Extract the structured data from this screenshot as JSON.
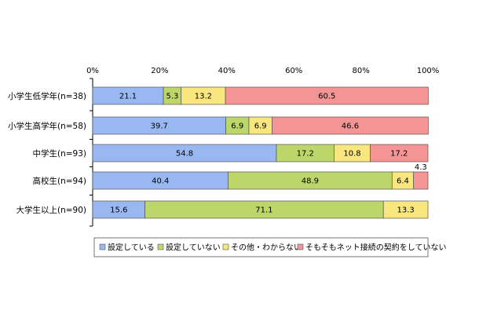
{
  "chart_data": {
    "type": "bar",
    "orientation": "horizontal",
    "stacked": true,
    "xlim": [
      0,
      100
    ],
    "x_ticks": [
      "0%",
      "20%",
      "40%",
      "60%",
      "80%",
      "100%"
    ],
    "categories": [
      "小学生低学年(n=38)",
      "小学生高学年(n=58)",
      "中学生(n=93)",
      "高校生(n=94)",
      "大学生以上(n=90)"
    ],
    "series": [
      {
        "name": "設定している",
        "color": "#99b8f2",
        "values": [
          21.1,
          39.7,
          54.8,
          40.4,
          15.6
        ]
      },
      {
        "name": "設定していない",
        "color": "#bcd66a",
        "values": [
          5.3,
          6.9,
          17.2,
          48.9,
          71.1
        ]
      },
      {
        "name": "その他・わからない",
        "color": "#f8e67e",
        "values": [
          13.2,
          6.9,
          10.8,
          6.4,
          13.3
        ]
      },
      {
        "name": "そもそもネット接続の契約をしていない",
        "color": "#f49494",
        "values": [
          60.5,
          46.6,
          17.2,
          4.3,
          0
        ]
      }
    ],
    "outside_labels": [
      {
        "category_index": 3,
        "series_index": 3,
        "text": "4.3"
      }
    ],
    "grid": false,
    "legend_position": "bottom"
  }
}
